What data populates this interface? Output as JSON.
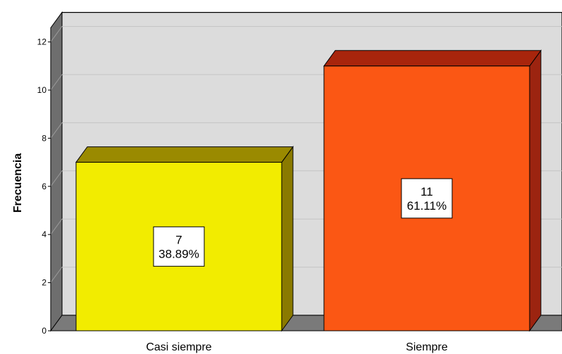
{
  "chart_data": {
    "type": "bar",
    "categories": [
      "Casi siempre",
      "Siempre"
    ],
    "values": [
      7,
      11
    ],
    "percent_labels": [
      "38.89%",
      "61.11%"
    ],
    "ylabel": "Frecuencia",
    "ylim": [
      0,
      12
    ],
    "yticks": [
      0,
      2,
      4,
      6,
      8,
      10,
      12
    ],
    "grid": true,
    "three_d": true,
    "colors": {
      "bars": [
        "#f2ec00",
        "#fb5714"
      ],
      "bar_tops": [
        "#9a8a00",
        "#a8250c"
      ],
      "bar_sides": [
        "#8a7a00",
        "#9c2410"
      ],
      "wall": "#dcdcdc",
      "floor": "#7a7a7a",
      "left_wall": "#6e6e6e"
    }
  }
}
